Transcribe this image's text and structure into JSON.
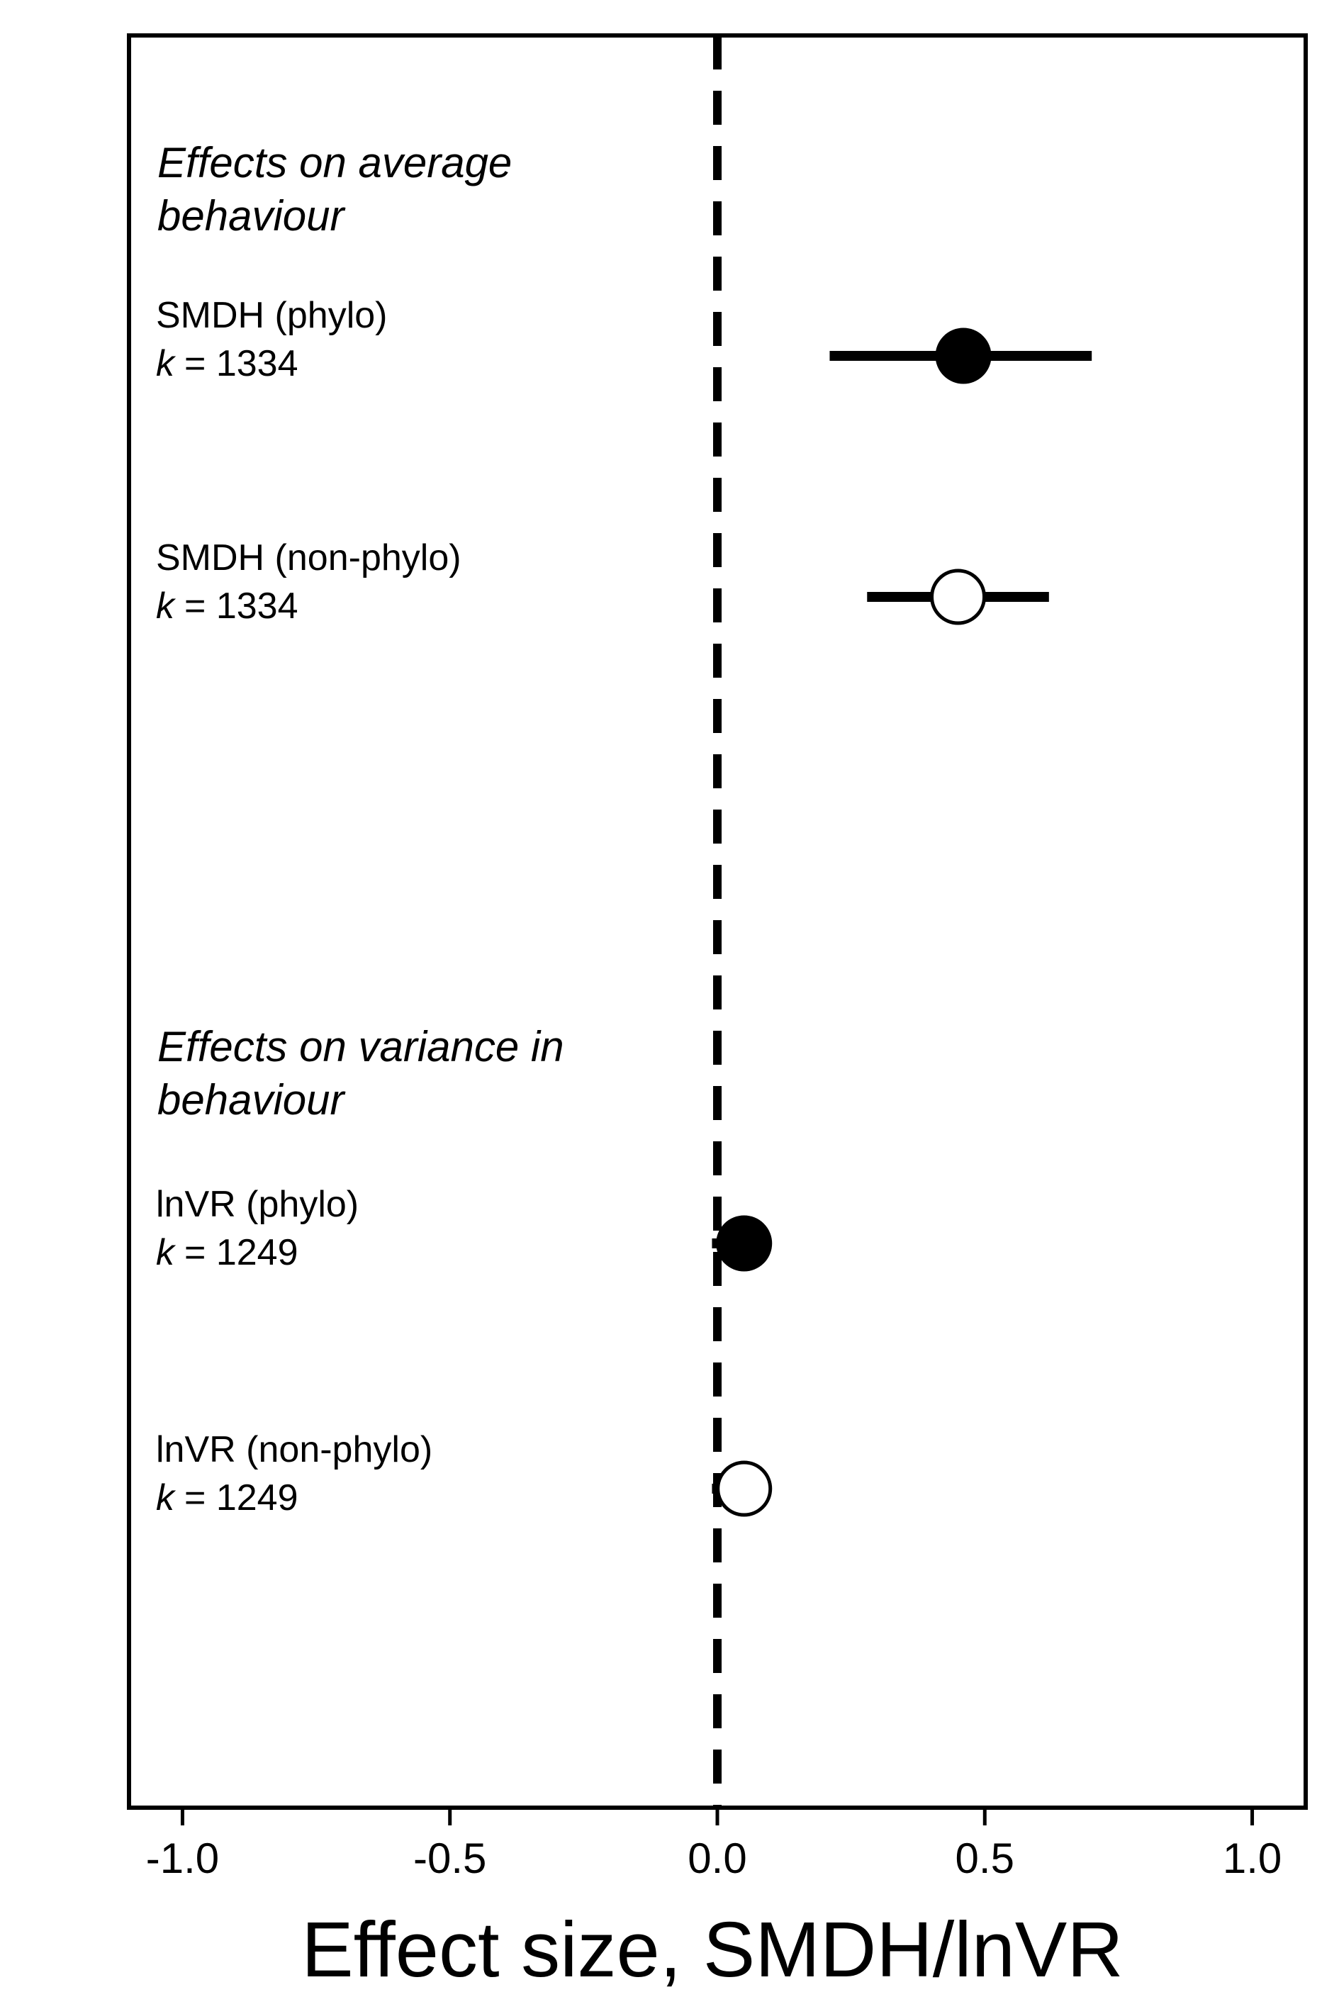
{
  "chart_data": {
    "type": "forest",
    "xlabel": "Effect size, SMDH/lnVR",
    "xlim": [
      -1.1,
      1.1
    ],
    "x_ticks": [
      -1.0,
      -0.5,
      0.0,
      0.5,
      1.0
    ],
    "x_tick_labels": [
      "-1.0",
      "-0.5",
      "0.0",
      "0.5",
      "1.0"
    ],
    "reference_line": {
      "x": 0.0,
      "style": "dashed"
    },
    "grid": false,
    "groups": [
      {
        "label_line1": "Effects on average",
        "label_line2": "behaviour",
        "rows": [
          {
            "name": "SMDH (phylo)",
            "k_prefix": "k",
            "k_value": "= 1334",
            "estimate": 0.46,
            "ci_low": 0.21,
            "ci_high": 0.7,
            "marker": "filled"
          },
          {
            "name": "SMDH (non-phylo)",
            "k_prefix": "k",
            "k_value": "= 1334",
            "estimate": 0.45,
            "ci_low": 0.28,
            "ci_high": 0.62,
            "marker": "open"
          }
        ]
      },
      {
        "label_line1": "Effects on variance in",
        "label_line2": "behaviour",
        "rows": [
          {
            "name": "lnVR (phylo)",
            "k_prefix": "k",
            "k_value": "= 1249",
            "estimate": 0.05,
            "ci_low": -0.01,
            "ci_high": 0.1,
            "marker": "filled"
          },
          {
            "name": "lnVR (non-phylo)",
            "k_prefix": "k",
            "k_value": "= 1249",
            "estimate": 0.05,
            "ci_low": -0.01,
            "ci_high": 0.1,
            "marker": "open"
          }
        ]
      }
    ]
  }
}
